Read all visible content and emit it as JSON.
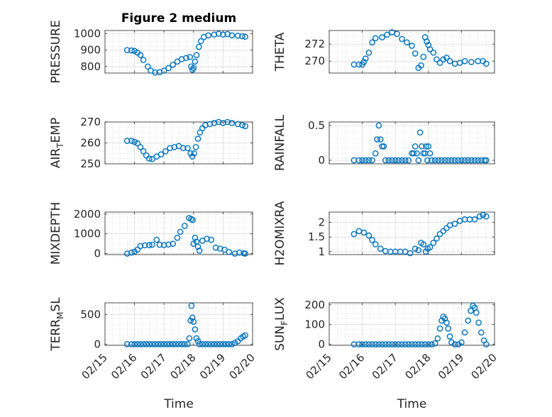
{
  "figure_title": "Figure 2 medium",
  "marker_color": "#0072BD",
  "x_ticks": [
    "02/15",
    "02/16",
    "02/17",
    "02/18",
    "02/19",
    "02/20"
  ],
  "chart_data": [
    {
      "type": "scatter",
      "id": "pressure",
      "title": "Figure 2 medium",
      "ylabel": "PRESSURE",
      "xlabel": "",
      "xlim": [
        "02/15",
        "02/20"
      ],
      "ylim": [
        760,
        1020
      ],
      "yticks": [
        800,
        900,
        1000
      ],
      "grid": "minor",
      "marker": "open-circle",
      "points": [
        [
          0.75,
          900
        ],
        [
          0.9,
          898
        ],
        [
          1.0,
          895
        ],
        [
          1.1,
          885
        ],
        [
          1.2,
          870
        ],
        [
          1.3,
          840
        ],
        [
          1.45,
          800
        ],
        [
          1.55,
          775
        ],
        [
          1.7,
          763
        ],
        [
          1.85,
          765
        ],
        [
          2.0,
          775
        ],
        [
          2.15,
          790
        ],
        [
          2.3,
          810
        ],
        [
          2.45,
          830
        ],
        [
          2.6,
          845
        ],
        [
          2.75,
          852
        ],
        [
          2.88,
          858
        ],
        [
          2.92,
          800
        ],
        [
          2.96,
          780
        ],
        [
          3.0,
          790
        ],
        [
          3.05,
          830
        ],
        [
          3.1,
          870
        ],
        [
          3.18,
          920
        ],
        [
          3.25,
          955
        ],
        [
          3.35,
          980
        ],
        [
          3.5,
          990
        ],
        [
          3.7,
          995
        ],
        [
          3.85,
          1000
        ],
        [
          4.0,
          995
        ],
        [
          4.15,
          998
        ],
        [
          4.3,
          990
        ],
        [
          4.5,
          988
        ],
        [
          4.65,
          985
        ],
        [
          4.75,
          982
        ]
      ]
    },
    {
      "type": "scatter",
      "id": "theta",
      "title": "",
      "ylabel": "THETA",
      "xlabel": "",
      "xlim": [
        "02/15",
        "02/20"
      ],
      "ylim": [
        268.6,
        273.6
      ],
      "yticks": [
        270,
        272
      ],
      "grid": "minor",
      "marker": "open-circle",
      "points": [
        [
          0.75,
          269.6
        ],
        [
          0.9,
          269.6
        ],
        [
          1.0,
          269.6
        ],
        [
          1.05,
          269.9
        ],
        [
          1.1,
          270.3
        ],
        [
          1.2,
          271.0
        ],
        [
          1.3,
          272.2
        ],
        [
          1.4,
          272.7
        ],
        [
          1.6,
          272.8
        ],
        [
          1.75,
          273.1
        ],
        [
          1.9,
          273.4
        ],
        [
          2.05,
          273.2
        ],
        [
          2.2,
          272.6
        ],
        [
          2.35,
          272.2
        ],
        [
          2.5,
          271.8
        ],
        [
          2.6,
          270.9
        ],
        [
          2.7,
          269.2
        ],
        [
          2.78,
          269.5
        ],
        [
          2.85,
          270.5
        ],
        [
          2.9,
          272.8
        ],
        [
          2.95,
          272.3
        ],
        [
          3.0,
          271.9
        ],
        [
          3.05,
          271.4
        ],
        [
          3.15,
          271.0
        ],
        [
          3.25,
          270.2
        ],
        [
          3.35,
          269.8
        ],
        [
          3.45,
          270.2
        ],
        [
          3.55,
          270.4
        ],
        [
          3.65,
          270.0
        ],
        [
          3.8,
          269.7
        ],
        [
          3.95,
          269.8
        ],
        [
          4.1,
          270.0
        ],
        [
          4.3,
          269.9
        ],
        [
          4.5,
          270.0
        ],
        [
          4.65,
          270.0
        ],
        [
          4.75,
          269.7
        ]
      ]
    },
    {
      "type": "scatter",
      "id": "air_temp",
      "title": "",
      "ylabel": "AIR",
      "ylabel_sub": "T",
      "ylabel_rest": "EMP",
      "xlabel": "",
      "xlim": [
        "02/15",
        "02/20"
      ],
      "ylim": [
        250,
        270
      ],
      "yticks": [
        250,
        260,
        270
      ],
      "grid": "minor",
      "marker": "open-circle",
      "points": [
        [
          0.75,
          261
        ],
        [
          0.9,
          261
        ],
        [
          1.0,
          260.5
        ],
        [
          1.1,
          259.8
        ],
        [
          1.2,
          258
        ],
        [
          1.3,
          256
        ],
        [
          1.4,
          254
        ],
        [
          1.5,
          252.5
        ],
        [
          1.6,
          252.3
        ],
        [
          1.75,
          253.5
        ],
        [
          1.9,
          254.5
        ],
        [
          2.05,
          256
        ],
        [
          2.2,
          257.5
        ],
        [
          2.35,
          258
        ],
        [
          2.5,
          258.5
        ],
        [
          2.65,
          257.5
        ],
        [
          2.8,
          257.5
        ],
        [
          2.9,
          255
        ],
        [
          2.96,
          253.5
        ],
        [
          3.02,
          255
        ],
        [
          3.08,
          258
        ],
        [
          3.15,
          262
        ],
        [
          3.22,
          265
        ],
        [
          3.3,
          267
        ],
        [
          3.4,
          268.5
        ],
        [
          3.55,
          269
        ],
        [
          3.7,
          269.5
        ],
        [
          3.85,
          270
        ],
        [
          4.0,
          269.5
        ],
        [
          4.15,
          270
        ],
        [
          4.3,
          269.5
        ],
        [
          4.5,
          269
        ],
        [
          4.65,
          268.5
        ],
        [
          4.75,
          268
        ]
      ]
    },
    {
      "type": "scatter",
      "id": "rainfall",
      "title": "",
      "ylabel": "RAINFALL",
      "xlabel": "",
      "xlim": [
        "02/15",
        "02/20"
      ],
      "ylim": [
        -0.05,
        0.55
      ],
      "yticks": [
        0,
        0.5
      ],
      "grid": "minor",
      "marker": "open-circle",
      "points": [
        [
          0.75,
          0
        ],
        [
          0.9,
          0
        ],
        [
          1.0,
          0
        ],
        [
          1.1,
          0
        ],
        [
          1.2,
          0
        ],
        [
          1.3,
          0
        ],
        [
          1.4,
          0.1
        ],
        [
          1.45,
          0.3
        ],
        [
          1.5,
          0.5
        ],
        [
          1.55,
          0.3
        ],
        [
          1.6,
          0.2
        ],
        [
          1.65,
          0.2
        ],
        [
          1.7,
          0
        ],
        [
          1.8,
          0
        ],
        [
          1.9,
          0
        ],
        [
          2.0,
          0
        ],
        [
          2.1,
          0
        ],
        [
          2.2,
          0
        ],
        [
          2.3,
          0
        ],
        [
          2.4,
          0
        ],
        [
          2.5,
          0.1
        ],
        [
          2.55,
          0.1
        ],
        [
          2.6,
          0.2
        ],
        [
          2.65,
          0.1
        ],
        [
          2.7,
          0
        ],
        [
          2.75,
          0.4
        ],
        [
          2.8,
          0.2
        ],
        [
          2.85,
          0.1
        ],
        [
          2.9,
          0.1
        ],
        [
          2.93,
          0.2
        ],
        [
          2.97,
          0
        ],
        [
          3.0,
          0.2
        ],
        [
          3.05,
          0.1
        ],
        [
          3.1,
          0
        ],
        [
          3.2,
          0
        ],
        [
          3.3,
          0
        ],
        [
          3.4,
          0
        ],
        [
          3.5,
          0
        ],
        [
          3.6,
          0
        ],
        [
          3.7,
          0
        ],
        [
          3.8,
          0
        ],
        [
          3.9,
          0
        ],
        [
          4.0,
          0
        ],
        [
          4.1,
          0
        ],
        [
          4.2,
          0
        ],
        [
          4.3,
          0
        ],
        [
          4.4,
          0
        ],
        [
          4.5,
          0
        ],
        [
          4.6,
          0
        ],
        [
          4.7,
          0
        ],
        [
          4.75,
          0
        ]
      ]
    },
    {
      "type": "scatter",
      "id": "mixdepth",
      "title": "",
      "ylabel": "MIXDEPTH",
      "xlabel": "",
      "xlim": [
        "02/15",
        "02/20"
      ],
      "ylim": [
        -50,
        2100
      ],
      "yticks": [
        0,
        1000,
        2000
      ],
      "grid": "minor",
      "marker": "open-circle",
      "points": [
        [
          0.75,
          0
        ],
        [
          0.9,
          50
        ],
        [
          1.0,
          100
        ],
        [
          1.1,
          200
        ],
        [
          1.2,
          380
        ],
        [
          1.35,
          420
        ],
        [
          1.5,
          430
        ],
        [
          1.6,
          450
        ],
        [
          1.75,
          700
        ],
        [
          1.85,
          450
        ],
        [
          2.0,
          430
        ],
        [
          2.15,
          460
        ],
        [
          2.3,
          500
        ],
        [
          2.45,
          800
        ],
        [
          2.55,
          1100
        ],
        [
          2.7,
          1400
        ],
        [
          2.85,
          1800
        ],
        [
          2.92,
          1750
        ],
        [
          2.97,
          1700
        ],
        [
          3.0,
          500
        ],
        [
          3.05,
          800
        ],
        [
          3.1,
          600
        ],
        [
          3.15,
          350
        ],
        [
          3.2,
          150
        ],
        [
          3.3,
          650
        ],
        [
          3.45,
          750
        ],
        [
          3.6,
          700
        ],
        [
          3.75,
          300
        ],
        [
          3.9,
          250
        ],
        [
          4.05,
          200
        ],
        [
          4.2,
          80
        ],
        [
          4.4,
          0
        ],
        [
          4.55,
          50
        ],
        [
          4.7,
          20
        ],
        [
          4.75,
          0
        ]
      ]
    },
    {
      "type": "scatter",
      "id": "h2omixra",
      "title": "",
      "ylabel": "H2OMIXRA",
      "xlabel": "",
      "xlim": [
        "02/15",
        "02/20"
      ],
      "ylim": [
        0.9,
        2.35
      ],
      "yticks": [
        1,
        1.5,
        2
      ],
      "grid": "minor",
      "marker": "open-circle",
      "points": [
        [
          0.75,
          1.6
        ],
        [
          0.9,
          1.7
        ],
        [
          1.05,
          1.65
        ],
        [
          1.2,
          1.55
        ],
        [
          1.3,
          1.4
        ],
        [
          1.4,
          1.25
        ],
        [
          1.55,
          1.1
        ],
        [
          1.7,
          1.02
        ],
        [
          1.85,
          1.0
        ],
        [
          2.0,
          1.0
        ],
        [
          2.15,
          1.0
        ],
        [
          2.3,
          1.0
        ],
        [
          2.45,
          0.95
        ],
        [
          2.6,
          1.1
        ],
        [
          2.7,
          1.05
        ],
        [
          2.78,
          1.3
        ],
        [
          2.85,
          1.25
        ],
        [
          2.92,
          1.0
        ],
        [
          2.98,
          1.1
        ],
        [
          3.05,
          1.15
        ],
        [
          3.15,
          1.3
        ],
        [
          3.25,
          1.45
        ],
        [
          3.35,
          1.6
        ],
        [
          3.45,
          1.7
        ],
        [
          3.55,
          1.8
        ],
        [
          3.65,
          1.9
        ],
        [
          3.8,
          1.95
        ],
        [
          3.95,
          2.05
        ],
        [
          4.1,
          2.1
        ],
        [
          4.25,
          2.1
        ],
        [
          4.4,
          2.1
        ],
        [
          4.55,
          2.2
        ],
        [
          4.65,
          2.25
        ],
        [
          4.75,
          2.2
        ]
      ]
    },
    {
      "type": "scatter",
      "id": "terr_msl",
      "title": "",
      "ylabel": "TERR",
      "ylabel_sub": "M",
      "ylabel_rest": "SL",
      "xlabel": "Time",
      "xlim": [
        "02/15",
        "02/20"
      ],
      "ylim": [
        -20,
        700
      ],
      "yticks": [
        0,
        500
      ],
      "grid": "minor",
      "marker": "open-circle",
      "points": [
        [
          0.75,
          0
        ],
        [
          0.9,
          0
        ],
        [
          1.0,
          0
        ],
        [
          1.1,
          0
        ],
        [
          1.2,
          0
        ],
        [
          1.3,
          0
        ],
        [
          1.4,
          0
        ],
        [
          1.5,
          0
        ],
        [
          1.6,
          0
        ],
        [
          1.7,
          0
        ],
        [
          1.8,
          0
        ],
        [
          1.9,
          0
        ],
        [
          2.0,
          0
        ],
        [
          2.1,
          0
        ],
        [
          2.2,
          0
        ],
        [
          2.3,
          0
        ],
        [
          2.4,
          0
        ],
        [
          2.5,
          0
        ],
        [
          2.6,
          0
        ],
        [
          2.7,
          0
        ],
        [
          2.8,
          0
        ],
        [
          2.86,
          100
        ],
        [
          2.9,
          400
        ],
        [
          2.93,
          650
        ],
        [
          2.96,
          450
        ],
        [
          3.0,
          380
        ],
        [
          3.05,
          250
        ],
        [
          3.1,
          100
        ],
        [
          3.15,
          50
        ],
        [
          3.2,
          0
        ],
        [
          3.3,
          0
        ],
        [
          3.4,
          0
        ],
        [
          3.5,
          0
        ],
        [
          3.6,
          0
        ],
        [
          3.7,
          0
        ],
        [
          3.8,
          0
        ],
        [
          3.9,
          0
        ],
        [
          4.0,
          0
        ],
        [
          4.1,
          0
        ],
        [
          4.2,
          0
        ],
        [
          4.3,
          0
        ],
        [
          4.4,
          20
        ],
        [
          4.5,
          50
        ],
        [
          4.6,
          100
        ],
        [
          4.68,
          130
        ],
        [
          4.75,
          150
        ]
      ]
    },
    {
      "type": "scatter",
      "id": "sun_flux",
      "title": "",
      "ylabel": "SUN",
      "ylabel_sub": "F",
      "ylabel_rest": "LUX",
      "xlabel": "Time",
      "xlim": [
        "02/15",
        "02/20"
      ],
      "ylim": [
        -5,
        210
      ],
      "yticks": [
        0,
        100,
        200
      ],
      "grid": "minor",
      "marker": "open-circle",
      "points": [
        [
          0.75,
          0
        ],
        [
          0.9,
          0
        ],
        [
          1.0,
          0
        ],
        [
          1.1,
          0
        ],
        [
          1.2,
          0
        ],
        [
          1.3,
          0
        ],
        [
          1.4,
          0
        ],
        [
          1.5,
          0
        ],
        [
          1.6,
          0
        ],
        [
          1.7,
          0
        ],
        [
          1.8,
          0
        ],
        [
          1.9,
          0
        ],
        [
          2.0,
          0
        ],
        [
          2.1,
          0
        ],
        [
          2.2,
          0
        ],
        [
          2.3,
          0
        ],
        [
          2.4,
          0
        ],
        [
          2.5,
          0
        ],
        [
          2.6,
          0
        ],
        [
          2.7,
          0
        ],
        [
          2.8,
          0
        ],
        [
          2.9,
          0
        ],
        [
          3.0,
          0
        ],
        [
          3.1,
          0
        ],
        [
          3.2,
          5
        ],
        [
          3.28,
          30
        ],
        [
          3.35,
          80
        ],
        [
          3.4,
          120
        ],
        [
          3.45,
          140
        ],
        [
          3.5,
          130
        ],
        [
          3.55,
          110
        ],
        [
          3.6,
          80
        ],
        [
          3.65,
          40
        ],
        [
          3.7,
          10
        ],
        [
          3.8,
          0
        ],
        [
          3.9,
          0
        ],
        [
          4.0,
          10
        ],
        [
          4.1,
          60
        ],
        [
          4.2,
          120
        ],
        [
          4.28,
          170
        ],
        [
          4.35,
          195
        ],
        [
          4.4,
          185
        ],
        [
          4.45,
          160
        ],
        [
          4.52,
          110
        ],
        [
          4.6,
          60
        ],
        [
          4.68,
          20
        ],
        [
          4.75,
          0
        ]
      ]
    }
  ]
}
